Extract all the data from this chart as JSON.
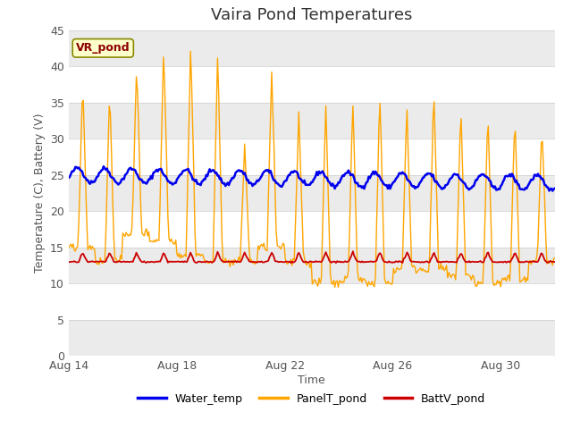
{
  "title": "Vaira Pond Temperatures",
  "xlabel": "Time",
  "ylabel": "Temperature (C), Battery (V)",
  "ylim": [
    0,
    45
  ],
  "yticks": [
    0,
    5,
    10,
    15,
    20,
    25,
    30,
    35,
    40,
    45
  ],
  "x_tick_labels": [
    "Aug 14",
    "Aug 18",
    "Aug 22",
    "Aug 26",
    "Aug 30"
  ],
  "x_tick_positions": [
    0,
    4,
    8,
    12,
    16
  ],
  "annotation_text": "VR_pond",
  "annotation_color": "#8B0000",
  "annotation_bg": "#FFFFCC",
  "water_temp_color": "#0000EE",
  "panel_temp_color": "#FFA500",
  "batt_color": "#CC0000",
  "bg_color_outer": "#FFFFFF",
  "bg_color_inner": "#FFFFFF",
  "band_light": "#EBEBEB",
  "band_white": "#FFFFFF",
  "grid_color": "#FFFFFF",
  "n_days": 18,
  "water_base": 25.0,
  "water_amplitude": 1.0,
  "water_trend": -0.06,
  "batt_base": 13.0
}
